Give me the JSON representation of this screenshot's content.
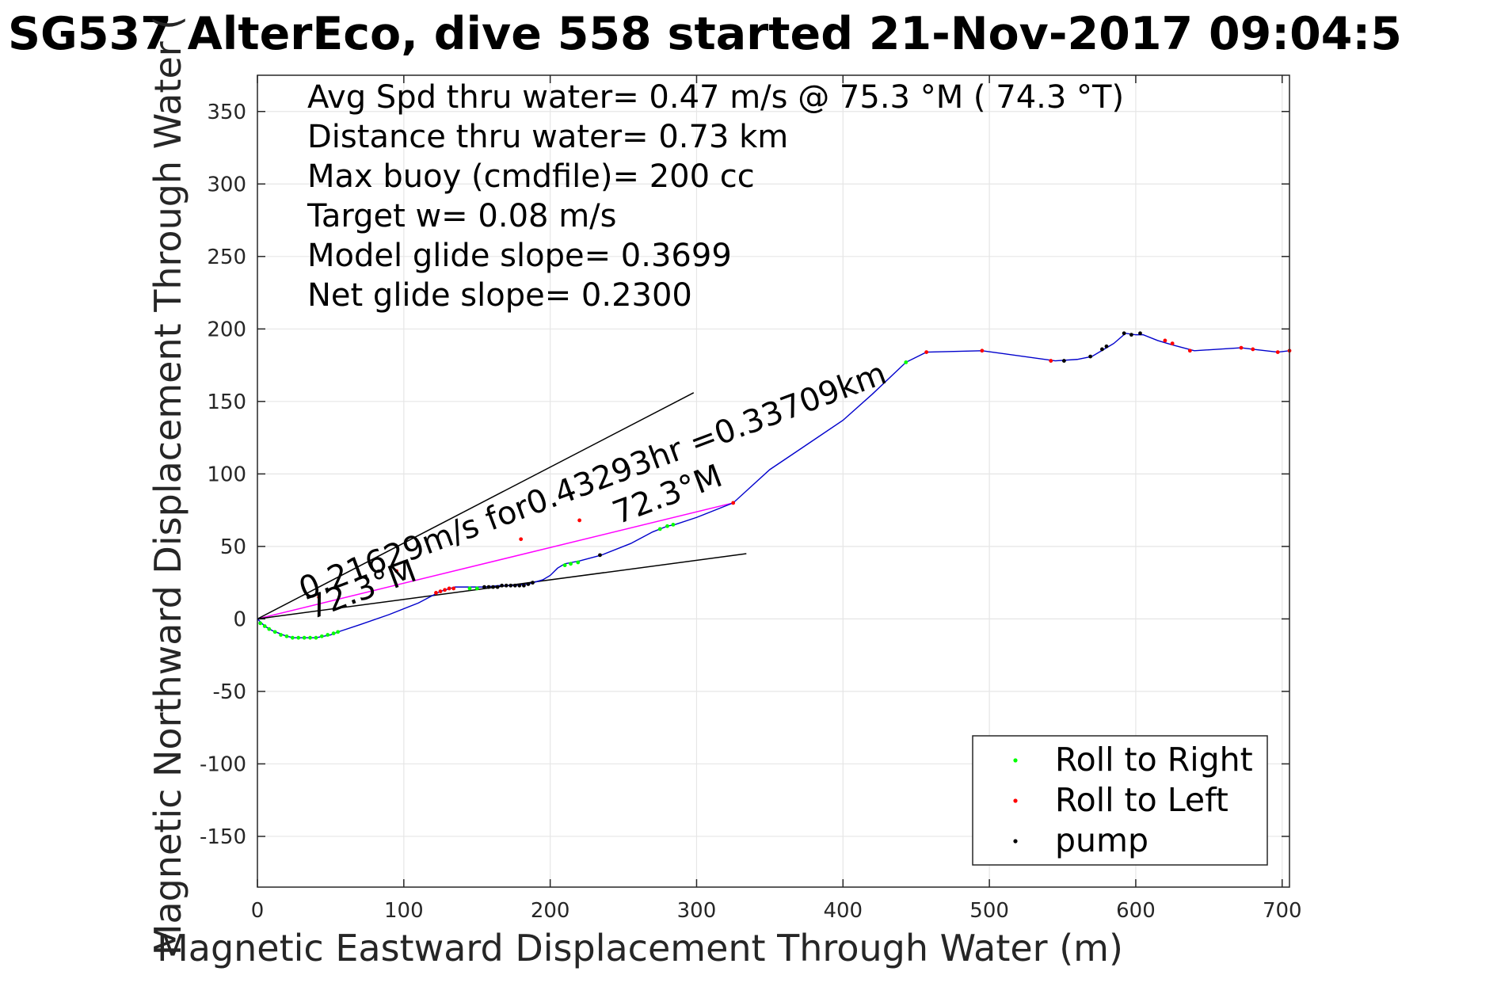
{
  "chart_data": {
    "type": "line",
    "title": "SG537 AlterEco, dive 558 started 21-Nov-2017 09:04:5",
    "xlabel": "Magnetic Eastward Displacement Through Water (m)",
    "ylabel": "Magnetic Northward Displacement Through Water (",
    "xlim": [
      0,
      705
    ],
    "ylim": [
      -185,
      375
    ],
    "xticks": [
      0,
      100,
      200,
      300,
      400,
      500,
      600,
      700
    ],
    "yticks": [
      -150,
      -100,
      -50,
      0,
      50,
      100,
      150,
      200,
      250,
      300,
      350
    ],
    "grid": true,
    "legend_position": "bottom-right",
    "colors": {
      "track": "#0000cc",
      "glide_line": "#ff00ff",
      "bearing_lines": "#000000",
      "roll_right": "#00ff00",
      "roll_left": "#ff0000",
      "pump": "#000000"
    },
    "stats_text": [
      "Avg Spd thru water=  0.47 m/s @  75.3 °M ( 74.3 °T)",
      "Distance thru water=  0.73 km",
      "Max buoy (cmdfile)= 200 cc",
      "Target w= 0.08 m/s",
      "Model glide slope= 0.3699",
      "Net glide slope= 0.2300"
    ],
    "annotations": {
      "speed_text": "0.21629m/s for0.43293hr =0.33709km",
      "heading_left": "72.3°M",
      "heading_right": "72.3°M"
    },
    "series": [
      {
        "name": "track",
        "x": [
          0,
          5,
          10,
          15,
          20,
          25,
          30,
          35,
          40,
          45,
          50,
          55,
          70,
          90,
          110,
          125,
          135,
          145,
          155,
          165,
          175,
          185,
          195,
          200,
          205,
          210,
          215,
          220,
          235,
          255,
          270,
          280,
          285,
          300,
          325,
          350,
          375,
          400,
          420,
          443,
          457,
          495,
          545,
          560,
          570,
          580,
          585,
          593,
          600,
          605,
          615,
          625,
          640,
          672,
          680,
          697,
          705
        ],
        "y": [
          0,
          -5,
          -8,
          -10,
          -12,
          -13,
          -13,
          -13,
          -13,
          -12,
          -11,
          -9,
          -4,
          3,
          11,
          19,
          22,
          22,
          22,
          23,
          23,
          24,
          27,
          30,
          35,
          38,
          39,
          40,
          44,
          52,
          60,
          64,
          65,
          70,
          80,
          103,
          120,
          137,
          155,
          177,
          184,
          185,
          178,
          179,
          181,
          187,
          190,
          197,
          196,
          196,
          192,
          189,
          185,
          187,
          186,
          184,
          185
        ]
      },
      {
        "name": "Roll to Right",
        "x": [
          2,
          5,
          8,
          12,
          16,
          20,
          24,
          28,
          32,
          36,
          40,
          44,
          48,
          52,
          55,
          145,
          150,
          210,
          214,
          219,
          275,
          280,
          284,
          443
        ],
        "y": [
          -3,
          -5,
          -7,
          -9,
          -11,
          -12,
          -13,
          -13,
          -13,
          -13,
          -13,
          -12,
          -11,
          -10,
          -9,
          21,
          21,
          37,
          38,
          39,
          62,
          64,
          65,
          177
        ]
      },
      {
        "name": "Roll to Left",
        "x": [
          122,
          125,
          128,
          131,
          134,
          325,
          457,
          495,
          542,
          620,
          625,
          637,
          672,
          680,
          697,
          705,
          42,
          95,
          180,
          220
        ],
        "y": [
          18,
          19,
          20,
          21,
          21,
          80,
          184,
          185,
          178,
          192,
          190,
          185,
          187,
          186,
          184,
          185,
          15,
          33,
          55,
          68
        ]
      },
      {
        "name": "pump",
        "x": [
          155,
          158,
          161,
          164,
          167,
          170,
          173,
          176,
          179,
          182,
          185,
          188,
          234,
          551,
          569,
          577,
          580,
          592,
          597,
          603
        ],
        "y": [
          22,
          22,
          22,
          22,
          23,
          23,
          23,
          23,
          23,
          23,
          24,
          25,
          44,
          178,
          181,
          186,
          188,
          197,
          196,
          197
        ]
      }
    ],
    "reference_lines": [
      {
        "name": "glide-line",
        "x": [
          0,
          325
        ],
        "y": [
          0,
          80
        ]
      },
      {
        "name": "bearing-line-upper",
        "x": [
          0,
          298
        ],
        "y": [
          0,
          156
        ]
      },
      {
        "name": "bearing-line-lower",
        "x": [
          0,
          334
        ],
        "y": [
          0,
          45
        ]
      }
    ],
    "legend": [
      {
        "label": "Roll to Right",
        "color": "#00ff00"
      },
      {
        "label": "Roll to Left",
        "color": "#ff0000"
      },
      {
        "label": "pump",
        "color": "#000000"
      }
    ]
  }
}
